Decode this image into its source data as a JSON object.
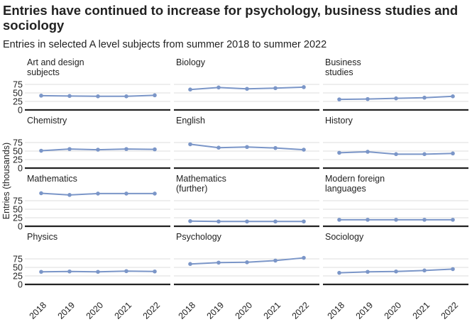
{
  "chart_data": {
    "type": "line",
    "title": "Entries have continued to increase for psychology, business studies and sociology",
    "subtitle": "Entries in selected A level subjects from summer 2018 to summer 2022",
    "ylabel": "Entries (thousands)",
    "xlabel": "",
    "x": [
      "2018",
      "2019",
      "2020",
      "2021",
      "2022"
    ],
    "yticks": [
      "0",
      "25",
      "50",
      "75"
    ],
    "ylim": [
      0,
      100
    ],
    "grid": true,
    "color": "#7b96c8",
    "panels": [
      {
        "name": "Art and design subjects",
        "lines": [
          "Art and design",
          "subjects"
        ],
        "values": [
          42,
          41,
          40,
          40,
          43
        ]
      },
      {
        "name": "Biology",
        "lines": [
          "Biology"
        ],
        "values": [
          60,
          66,
          62,
          64,
          67
        ]
      },
      {
        "name": "Business studies",
        "lines": [
          "Business",
          "studies"
        ],
        "values": [
          31,
          32,
          34,
          36,
          40
        ]
      },
      {
        "name": "Chemistry",
        "lines": [
          "Chemistry"
        ],
        "values": [
          51,
          56,
          54,
          56,
          55
        ]
      },
      {
        "name": "English",
        "lines": [
          "English"
        ],
        "values": [
          70,
          60,
          62,
          59,
          54
        ]
      },
      {
        "name": "History",
        "lines": [
          "History"
        ],
        "values": [
          45,
          48,
          41,
          41,
          43
        ]
      },
      {
        "name": "Mathematics",
        "lines": [
          "Mathematics"
        ],
        "values": [
          97,
          92,
          96,
          96,
          96
        ]
      },
      {
        "name": "Mathematics (further)",
        "lines": [
          "Mathematics",
          "(further)"
        ],
        "values": [
          15,
          14,
          14,
          14,
          14
        ]
      },
      {
        "name": "Modern foreign languages",
        "lines": [
          "Modern foreign",
          "languages"
        ],
        "values": [
          19,
          19,
          19,
          19,
          19
        ]
      },
      {
        "name": "Physics",
        "lines": [
          "Physics"
        ],
        "values": [
          37,
          38,
          37,
          39,
          38
        ]
      },
      {
        "name": "Psychology",
        "lines": [
          "Psychology"
        ],
        "values": [
          60,
          64,
          65,
          70,
          78
        ]
      },
      {
        "name": "Sociology",
        "lines": [
          "Sociology"
        ],
        "values": [
          34,
          37,
          38,
          41,
          45
        ]
      }
    ]
  }
}
